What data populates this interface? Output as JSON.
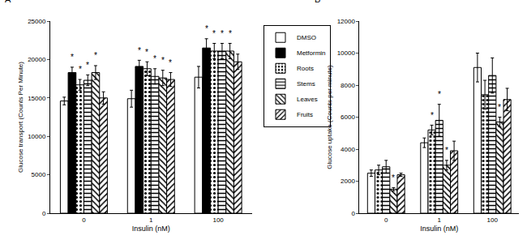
{
  "chart_data": [
    {
      "type": "bar",
      "title": "A",
      "x_label": "Insulin (nM)",
      "y_label": "Glucose transport (Counts Per Minute)",
      "categories": [
        "0",
        "1",
        "100"
      ],
      "series": [
        {
          "name": "DMSO",
          "color": "#ffffff",
          "marker": "solid",
          "values": [
            14600,
            14900,
            17700
          ],
          "errors": [
            500,
            1100,
            1400
          ]
        },
        {
          "name": "Metformin",
          "color": "#000000",
          "marker": "solid",
          "values": [
            18300,
            19100,
            21500
          ],
          "errors": [
            700,
            800,
            1200
          ]
        },
        {
          "name": "Roots",
          "color": "#ffffff",
          "marker": "dots",
          "values": [
            16700,
            18800,
            21100
          ],
          "errors": [
            700,
            900,
            1000
          ]
        },
        {
          "name": "Stems",
          "color": "#ffffff",
          "marker": "horizontal",
          "values": [
            17300,
            17800,
            21100
          ],
          "errors": [
            700,
            1000,
            1000
          ]
        },
        {
          "name": "Leaves",
          "color": "#ffffff",
          "marker": "backslash",
          "values": [
            18300,
            17600,
            21100
          ],
          "errors": [
            900,
            1000,
            1000
          ]
        },
        {
          "name": "Fruits",
          "color": "#ffffff",
          "marker": "slash",
          "values": [
            15000,
            17400,
            19700
          ],
          "errors": [
            800,
            900,
            1000
          ]
        }
      ],
      "annotations": [
        {
          "text": "*",
          "x": "0",
          "series": "Metformin"
        },
        {
          "text": "*",
          "x": "0",
          "series": "Roots"
        },
        {
          "text": "*",
          "x": "0",
          "series": "Stems"
        },
        {
          "text": "*",
          "x": "0",
          "series": "Leaves"
        },
        {
          "text": "*",
          "x": "1",
          "series": "Metformin"
        },
        {
          "text": "*",
          "x": "1",
          "series": "Roots"
        },
        {
          "text": "*",
          "x": "1",
          "series": "Stems"
        },
        {
          "text": "*",
          "x": "1",
          "series": "Leaves"
        },
        {
          "text": "*",
          "x": "1",
          "series": "Fruits"
        },
        {
          "text": "*",
          "x": "100",
          "series": "Metformin"
        },
        {
          "text": "*",
          "x": "100",
          "series": "Roots"
        },
        {
          "text": "*",
          "x": "100",
          "series": "Stems"
        },
        {
          "text": "*",
          "x": "100",
          "series": "Leaves"
        }
      ],
      "ylim": [
        0,
        25000
      ],
      "yticks": [
        0,
        5000,
        10000,
        15000,
        20000,
        25000
      ],
      "grid": false,
      "legend": "right"
    },
    {
      "type": "bar",
      "title": "B",
      "x_label": "Insulin (nM)",
      "y_label": "Glucose uptake (Counts per minute)",
      "categories": [
        "0",
        "1",
        "100"
      ],
      "series": [
        {
          "name": "DMSO",
          "color": "#ffffff",
          "marker": "solid",
          "values": [
            2500,
            4400,
            9100
          ],
          "errors": [
            200,
            300,
            900
          ]
        },
        {
          "name": "Roots",
          "color": "#ffffff",
          "marker": "dots",
          "values": [
            2700,
            5200,
            7400
          ],
          "errors": [
            300,
            300,
            900
          ]
        },
        {
          "name": "Stems",
          "color": "#ffffff",
          "marker": "horizontal",
          "values": [
            2900,
            5800,
            8600
          ],
          "errors": [
            400,
            1000,
            1100
          ]
        },
        {
          "name": "Leaves",
          "color": "#ffffff",
          "marker": "backslash",
          "values": [
            1500,
            3000,
            5700
          ],
          "errors": [
            100,
            300,
            300
          ]
        },
        {
          "name": "Fruits",
          "color": "#ffffff",
          "marker": "slash",
          "values": [
            2400,
            3900,
            7100
          ],
          "errors": [
            100,
            600,
            700
          ]
        }
      ],
      "annotations": [
        {
          "text": "*",
          "x": "0",
          "series": "Leaves"
        },
        {
          "text": "*",
          "x": "1",
          "series": "Roots"
        },
        {
          "text": "*",
          "x": "1",
          "series": "Stems"
        },
        {
          "text": "*",
          "x": "1",
          "series": "Leaves"
        },
        {
          "text": "*",
          "x": "100",
          "series": "Leaves"
        }
      ],
      "ylim": [
        0,
        12000
      ],
      "yticks": [
        0,
        2000,
        4000,
        6000,
        8000,
        10000,
        12000
      ],
      "grid": false
    }
  ]
}
